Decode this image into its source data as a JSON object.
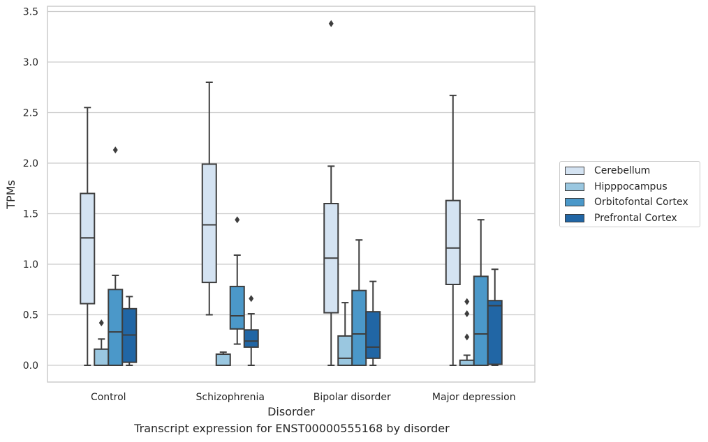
{
  "chart_data": {
    "type": "box",
    "xlabel": "Disorder",
    "ylabel": "TPMs",
    "ylim": [
      -0.17,
      3.56
    ],
    "yticks": [
      0.0,
      0.5,
      1.0,
      1.5,
      2.0,
      2.5,
      3.0,
      3.5
    ],
    "yticklabels": [
      "0.0",
      "0.5",
      "1.0",
      "1.5",
      "2.0",
      "2.5",
      "3.0",
      "3.5"
    ],
    "grid": true,
    "legend_position": "right",
    "categories": [
      "Control",
      "Schizophrenia",
      "Bipolar disorder",
      "Major depression"
    ],
    "series": [
      {
        "name": "Cerebellum",
        "color": "#d4e3f2",
        "boxes": [
          {
            "whislo": 0.0,
            "q1": 0.61,
            "med": 1.26,
            "q3": 1.7,
            "whishi": 2.55,
            "fliers": []
          },
          {
            "whislo": 0.5,
            "q1": 0.82,
            "med": 1.39,
            "q3": 1.99,
            "whishi": 2.8,
            "fliers": []
          },
          {
            "whislo": 0.0,
            "q1": 0.52,
            "med": 1.06,
            "q3": 1.6,
            "whishi": 1.97,
            "fliers": [
              3.38
            ]
          },
          {
            "whislo": 0.0,
            "q1": 0.8,
            "med": 1.16,
            "q3": 1.63,
            "whishi": 2.67,
            "fliers": []
          }
        ]
      },
      {
        "name": "Hipppocampus",
        "color": "#9ac7e0",
        "boxes": [
          {
            "whislo": 0.0,
            "q1": 0.0,
            "med": 0.0,
            "q3": 0.16,
            "whishi": 0.26,
            "fliers": [
              0.42
            ]
          },
          {
            "whislo": 0.0,
            "q1": 0.0,
            "med": 0.0,
            "q3": 0.11,
            "whishi": 0.13,
            "fliers": []
          },
          {
            "whislo": 0.0,
            "q1": 0.0,
            "med": 0.07,
            "q3": 0.29,
            "whishi": 0.62,
            "fliers": []
          },
          {
            "whislo": 0.0,
            "q1": 0.0,
            "med": 0.0,
            "q3": 0.05,
            "whishi": 0.1,
            "fliers": [
              0.28,
              0.51,
              0.63
            ]
          }
        ]
      },
      {
        "name": "Orbitofontal Cortex",
        "color": "#4b98c9",
        "boxes": [
          {
            "whislo": 0.0,
            "q1": 0.0,
            "med": 0.33,
            "q3": 0.75,
            "whishi": 0.89,
            "fliers": [
              2.13
            ]
          },
          {
            "whislo": 0.21,
            "q1": 0.36,
            "med": 0.49,
            "q3": 0.78,
            "whishi": 1.09,
            "fliers": [
              1.44
            ]
          },
          {
            "whislo": 0.0,
            "q1": 0.0,
            "med": 0.31,
            "q3": 0.74,
            "whishi": 1.24,
            "fliers": []
          },
          {
            "whislo": 0.0,
            "q1": 0.0,
            "med": 0.31,
            "q3": 0.88,
            "whishi": 1.44,
            "fliers": []
          }
        ]
      },
      {
        "name": "Prefrontal Cortex",
        "color": "#2166a5",
        "boxes": [
          {
            "whislo": 0.0,
            "q1": 0.03,
            "med": 0.3,
            "q3": 0.56,
            "whishi": 0.68,
            "fliers": []
          },
          {
            "whislo": 0.0,
            "q1": 0.18,
            "med": 0.24,
            "q3": 0.35,
            "whishi": 0.51,
            "fliers": [
              0.66
            ]
          },
          {
            "whislo": 0.0,
            "q1": 0.07,
            "med": 0.18,
            "q3": 0.53,
            "whishi": 0.83,
            "fliers": []
          },
          {
            "whislo": 0.0,
            "q1": 0.01,
            "med": 0.59,
            "q3": 0.64,
            "whishi": 0.95,
            "fliers": []
          }
        ]
      }
    ]
  },
  "caption": "Transcript expression for ENST00000555168 by disorder"
}
